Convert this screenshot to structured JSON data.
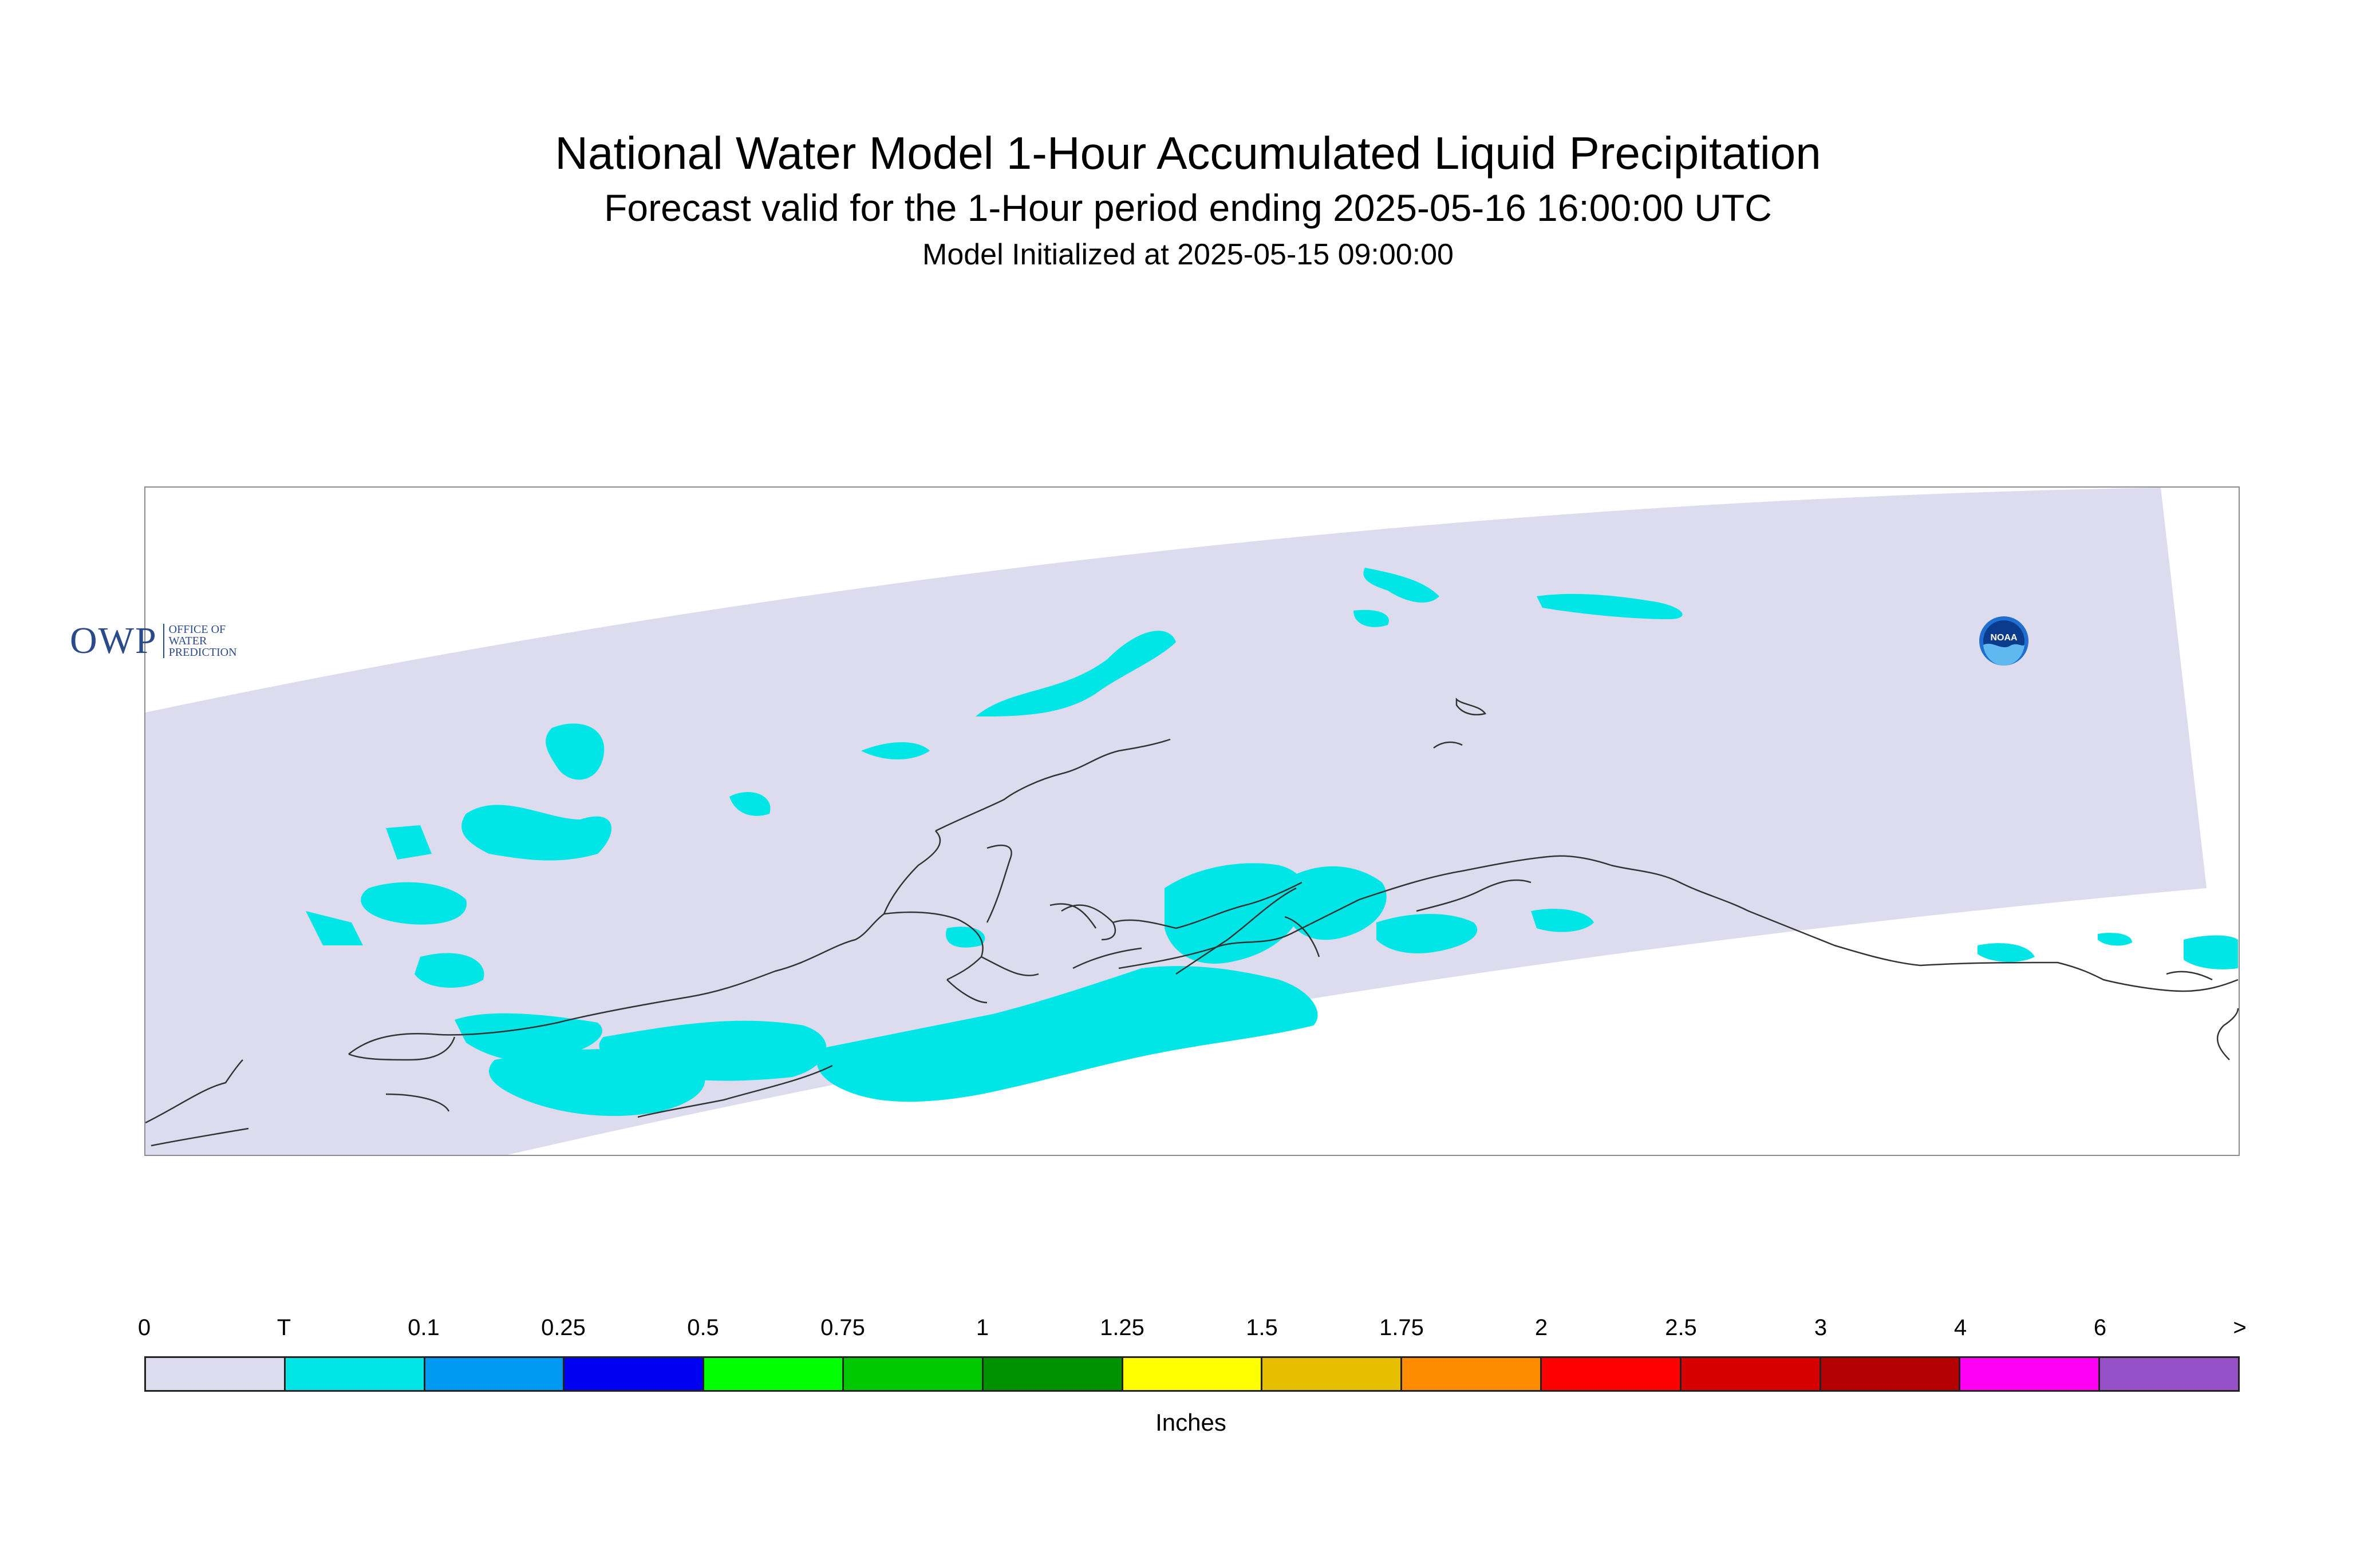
{
  "title": {
    "main": "National Water Model 1-Hour Accumulated Liquid Precipitation",
    "forecast": "Forecast valid for the 1-Hour period ending 2025-05-16 16:00:00 UTC",
    "initialized": "Model Initialized at 2025-05-15 09:00:00"
  },
  "map": {
    "domain_fill": "#dcdcee",
    "precip_fill": "#00e5e5",
    "coastline_color": "#333333"
  },
  "logos": {
    "owp": {
      "mark": "OWP",
      "lines": [
        "OFFICE OF",
        "WATER",
        "PREDICTION"
      ]
    },
    "noaa": {
      "label": "NOAA"
    }
  },
  "legend": {
    "tick_labels": [
      "0",
      "T",
      "0.1",
      "0.25",
      "0.5",
      "0.75",
      "1",
      "1.25",
      "1.5",
      "1.75",
      "2",
      "2.5",
      "3",
      "4",
      "6",
      ">"
    ],
    "colors": [
      "#dcdcee",
      "#00e5e5",
      "#0099f2",
      "#0000f2",
      "#00ff00",
      "#00c800",
      "#009100",
      "#ffff00",
      "#e6be00",
      "#ff8c00",
      "#ff0000",
      "#d70000",
      "#b40000",
      "#ff00f5",
      "#9650c8"
    ],
    "units": "Inches"
  }
}
